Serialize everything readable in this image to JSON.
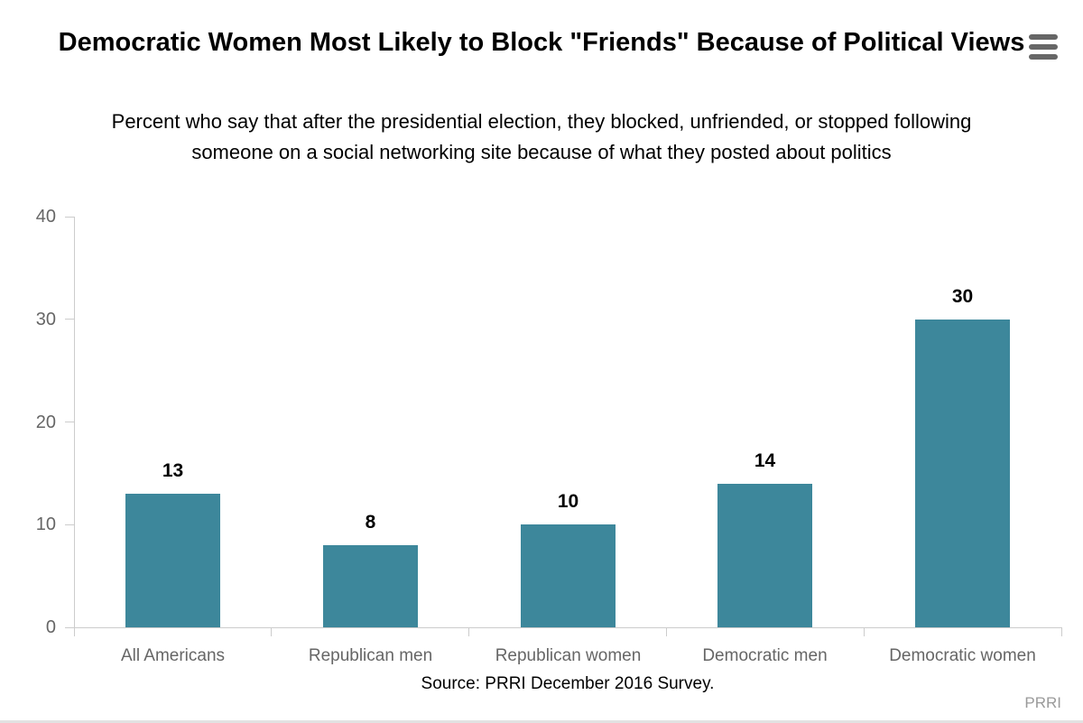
{
  "chart": {
    "title": "Democratic Women Most Likely to Block \"Friends\" Because of Political Views",
    "subtitle": "Percent who say that after the presidential election, they blocked, unfriended, or stopped following someone on a social networking site because of what they posted about politics",
    "source": "Source: PRRI December 2016 Survey.",
    "credit": "PRRI",
    "menu_icon": "hamburger-icon"
  },
  "chart_data": {
    "type": "bar",
    "title": "Democratic Women Most Likely to Block \"Friends\" Because of Political Views",
    "subtitle": "Percent who say that after the presidential election, they blocked, unfriended, or stopped following someone on a social networking site because of what they posted about politics",
    "categories": [
      "All Americans",
      "Republican men",
      "Republican women",
      "Democratic men",
      "Democratic women"
    ],
    "values": [
      13,
      8,
      10,
      14,
      30
    ],
    "data_labels": [
      "13",
      "8",
      "10",
      "14",
      "30"
    ],
    "xlabel": "",
    "ylabel": "",
    "ylim": [
      0,
      40
    ],
    "yticks": [
      0,
      10,
      20,
      30,
      40
    ],
    "grid": false,
    "legend_position": "none",
    "bar_color": "#3d879b",
    "axis_color": "#cccccc",
    "label_color": "#666666"
  }
}
